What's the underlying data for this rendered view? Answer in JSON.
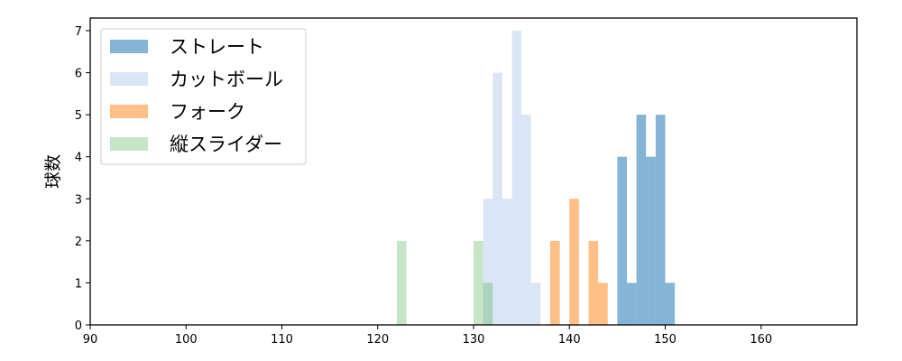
{
  "chart_data": {
    "type": "histogram",
    "title": "",
    "xlabel": "",
    "ylabel": "球数",
    "xlim": [
      90,
      170
    ],
    "ylim": [
      0,
      7.3
    ],
    "x_ticks": [
      90,
      100,
      110,
      120,
      130,
      140,
      150,
      160
    ],
    "y_ticks": [
      0,
      1,
      2,
      3,
      4,
      5,
      6,
      7
    ],
    "bin_width": 1,
    "grid": false,
    "legend_position": "top-left",
    "series": [
      {
        "name": "ストレート",
        "color": "#1f77b4",
        "opacity": 0.55,
        "bins": [
          {
            "x": 145,
            "count": 4
          },
          {
            "x": 146,
            "count": 1
          },
          {
            "x": 147,
            "count": 5
          },
          {
            "x": 148,
            "count": 4
          },
          {
            "x": 149,
            "count": 5
          },
          {
            "x": 150,
            "count": 1
          }
        ]
      },
      {
        "name": "カットボール",
        "color": "#aec7e8",
        "opacity": 0.45,
        "bins": [
          {
            "x": 131,
            "count": 3
          },
          {
            "x": 132,
            "count": 6
          },
          {
            "x": 133,
            "count": 3
          },
          {
            "x": 134,
            "count": 7
          },
          {
            "x": 135,
            "count": 5
          },
          {
            "x": 136,
            "count": 1
          }
        ]
      },
      {
        "name": "フォーク",
        "color": "#ff7f0e",
        "opacity": 0.5,
        "bins": [
          {
            "x": 138,
            "count": 2
          },
          {
            "x": 140,
            "count": 3
          },
          {
            "x": 142,
            "count": 2
          },
          {
            "x": 143,
            "count": 1
          }
        ]
      },
      {
        "name": "縦スライダー",
        "color": "#2ca02c",
        "opacity": 0.27,
        "bins": [
          {
            "x": 122,
            "count": 2
          },
          {
            "x": 130,
            "count": 2
          },
          {
            "x": 131,
            "count": 1
          }
        ]
      }
    ]
  }
}
